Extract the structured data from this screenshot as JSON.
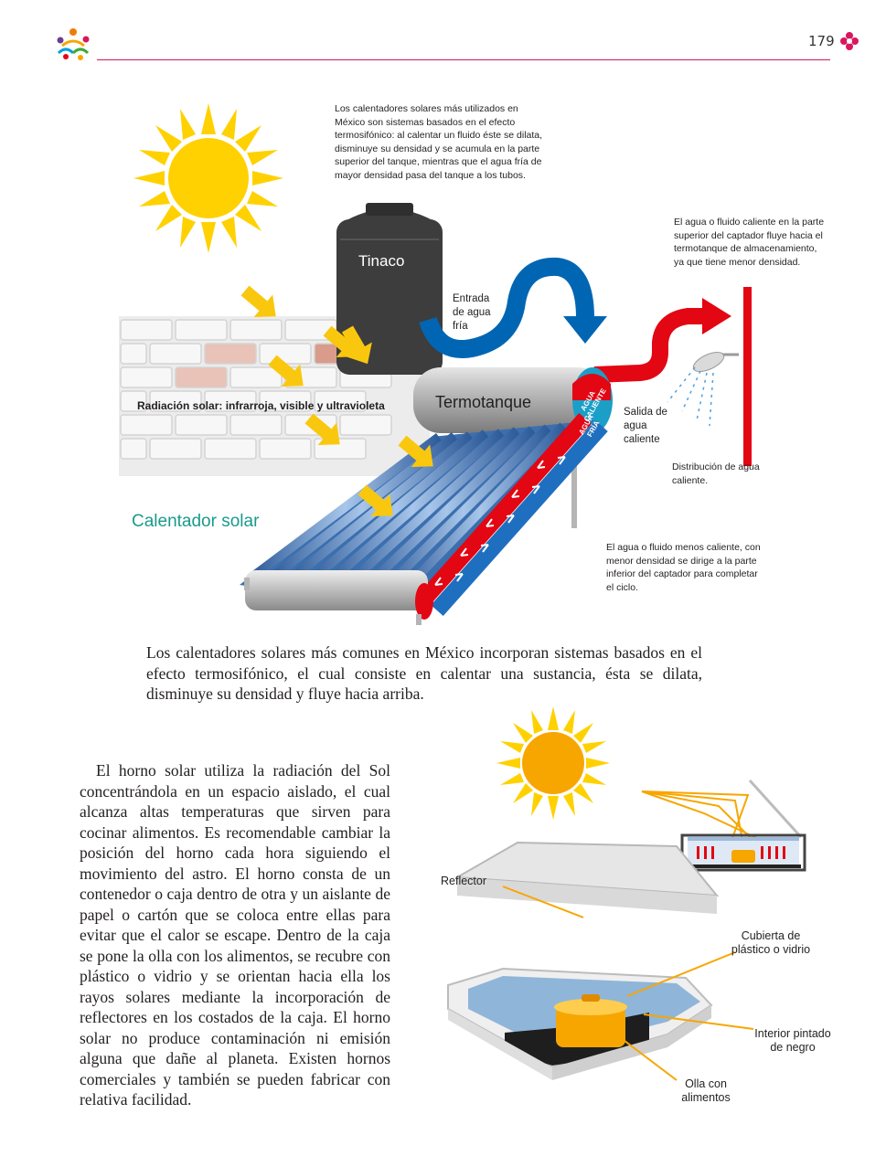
{
  "header": {
    "page_number": "179"
  },
  "solar_heater": {
    "intro_note": "Los calentadores solares más utilizados en México son sistemas basados en el efecto termosifónico: al calentar un fluido éste se dilata, disminuye su densidad y se acumula en la parte superior del tanque, mientras que el agua fría de mayor densidad pasa del tanque a los tubos.",
    "tinaco_label": "Tinaco",
    "entrada_label": "Entrada de agua fría",
    "hot_flow_note": "El agua o fluido caliente en la parte superior del captador fluye hacia el termotanque de almacenamiento, ya que tiene menor densidad.",
    "termotanque_label": "Termotanque",
    "agua_caliente_label": "AGUA CALIENTE",
    "agua_fria_label": "AGUA FRÍA",
    "salida_label": "Salida de agua caliente",
    "radiation_label": "Radiación solar: infrarroja, visible y ultravioleta",
    "distribution_label": "Distribución de agua caliente.",
    "title": "Calentador solar",
    "cold_flow_note": "El agua o fluido menos caliente, con menor densidad se dirige a la parte inferior del captador para completar el ciclo.",
    "caption": "Los calentadores solares más comunes en México incorporan sistemas basados en el efecto termosifónico, el cual consiste en calentar una sustancia, ésta se dilata, disminuye su densidad y fluye hacia arriba."
  },
  "oven": {
    "paragraph": "El horno solar utiliza la radiación del Sol concentrándola en un espacio aislado, el cual alcanza altas temperaturas que sirven para cocinar alimentos. Es recomendable cambiar la posición del horno cada hora siguiendo el movimiento del astro. El horno consta de un contenedor o caja dentro de otra y un aislante de papel o cartón que se coloca entre ellas para evitar que el calor se escape. Dentro de la caja se pone la olla con los alimentos, se recubre con plástico o vidrio y se orientan hacia ella los rayos solares mediante la incorporación de reflectores en los costados de la caja. El horno solar no produce contaminación ni emisión alguna que dañe al planeta. Existen hornos comerciales y también se pueden fabricar con relativa facilidad.",
    "reflector_label": "Reflector",
    "cubierta_label": "Cubierta de plástico o vidrio",
    "interior_label": "Interior pintado de negro",
    "olla_label": "Olla con alimentos"
  },
  "colors": {
    "accent_rule": "#d8175f",
    "teal_title": "#1a9a8c",
    "sun": "#ffd100",
    "hot_pipe": "#e30613",
    "cold_pipe": "#0066b3",
    "arrow_yellow": "#f9c80e"
  }
}
